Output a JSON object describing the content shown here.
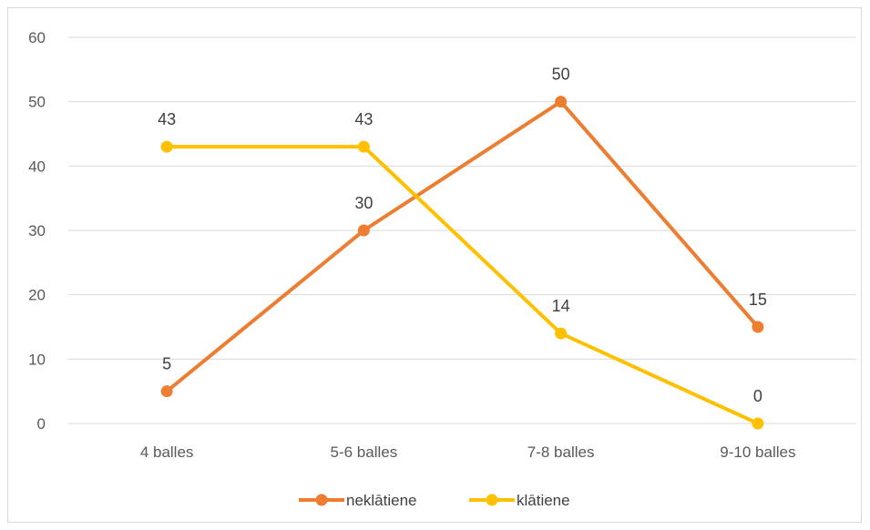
{
  "chart_data": {
    "type": "line",
    "title": "",
    "xlabel": "",
    "ylabel": "",
    "categories": [
      "4 balles",
      "5-6 balles",
      "7-8 balles",
      "9-10 balles"
    ],
    "ylim": [
      0,
      60
    ],
    "yticks": [
      0,
      10,
      20,
      30,
      40,
      50,
      60
    ],
    "grid": true,
    "legend_position": "bottom",
    "series": [
      {
        "name": "neklātiene",
        "color": "#ED7D31",
        "values": [
          5,
          30,
          50,
          15
        ],
        "labels": [
          "5",
          "30",
          "50",
          "15"
        ]
      },
      {
        "name": "klātiene",
        "color": "#FFC000",
        "values": [
          43,
          43,
          14,
          0
        ],
        "labels": [
          "43",
          "43",
          "14",
          "0"
        ]
      }
    ]
  }
}
